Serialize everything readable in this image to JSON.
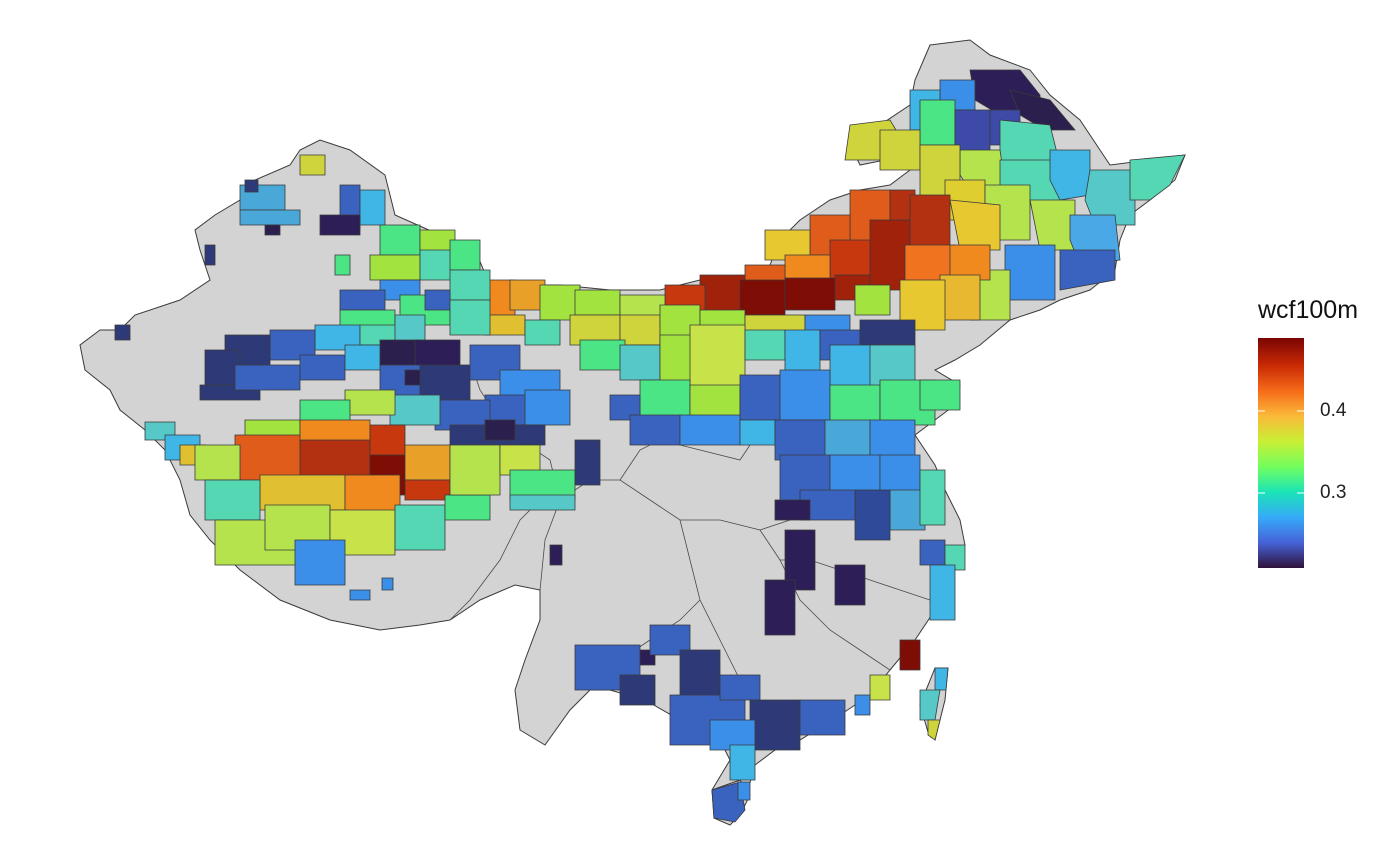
{
  "map": {
    "variable": "wcf100m",
    "base_fill": "#d3d3d3",
    "border_color": "#3a3a3a",
    "legend": {
      "title": "wcf100m",
      "ticks": [
        {
          "value": 0.4,
          "label": "0.4"
        },
        {
          "value": 0.3,
          "label": "0.3"
        }
      ],
      "range": [
        0.21,
        0.49
      ],
      "palette": [
        "#30123b",
        "#4662d7",
        "#36aaf9",
        "#1ae4b6",
        "#72fe5e",
        "#c8ef34",
        "#faba39",
        "#f66b19",
        "#ca2a04",
        "#7a0403"
      ]
    }
  }
}
